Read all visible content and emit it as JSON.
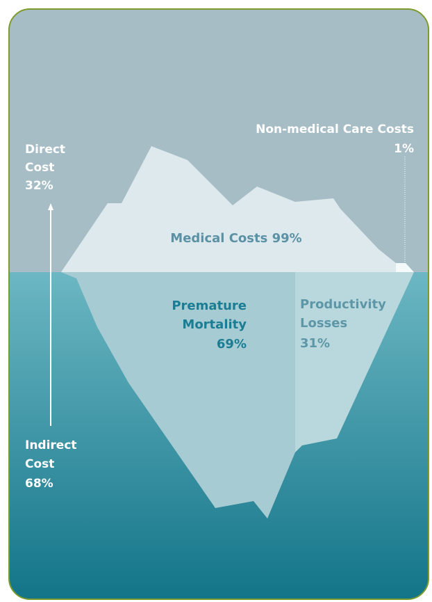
{
  "direct_cost": {
    "lines": [
      "Direct",
      "Cost",
      "32%"
    ]
  },
  "non_medical": {
    "lines": [
      "Non-medical Care Costs",
      "1%"
    ]
  },
  "medical": {
    "text": "Medical Costs 99%"
  },
  "premature_mortality": {
    "lines": [
      "Premature",
      "Mortality",
      "69%"
    ]
  },
  "productivity_losses": {
    "lines": [
      "Productivity",
      "Losses",
      "31%"
    ]
  },
  "indirect_cost": {
    "lines": [
      "Indirect",
      "Cost",
      "68%"
    ]
  }
}
